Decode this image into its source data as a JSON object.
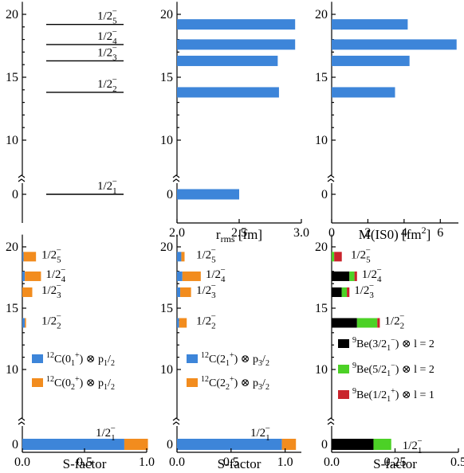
{
  "colors": {
    "blue": "#3d85d9",
    "orange": "#f28c1e",
    "black": "#000000",
    "green": "#4cd126",
    "red": "#c9242c"
  },
  "chart_data": [
    {
      "id": "levels",
      "type": "level-scheme",
      "ylim": [
        0,
        21
      ],
      "yticks": [
        "0",
        "10",
        "15",
        "20"
      ],
      "axis_break": true,
      "levels": [
        {
          "label": "1/2₁⁻",
          "E": 0
        },
        {
          "label": "1/2₂⁻",
          "E": 13.8
        },
        {
          "label": "1/2₃⁻",
          "E": 16.3
        },
        {
          "label": "1/2₄⁻",
          "E": 17.6
        },
        {
          "label": "1/2₅⁻",
          "E": 19.2
        }
      ]
    },
    {
      "id": "rrms",
      "type": "bar",
      "orientation": "horizontal",
      "xlabel": "r",
      "xlabel_sub": "rms",
      "xlabel_unit": "[fm]",
      "xlim": [
        2.0,
        3.0
      ],
      "xticks": [
        "2.0",
        "2.5",
        "3.0"
      ],
      "yticks": [
        "0",
        "10",
        "15",
        "20"
      ],
      "axis_break": true,
      "energies": [
        0,
        13.8,
        16.3,
        17.6,
        19.2
      ],
      "values": [
        2.5,
        2.82,
        2.81,
        2.95,
        2.95
      ]
    },
    {
      "id": "mis0",
      "type": "bar",
      "orientation": "horizontal",
      "xlabel": "M(IS0) [fm",
      "xlabel_sup": "2",
      "xlabel_end": "]",
      "xlim": [
        0,
        7
      ],
      "xticks": [
        "0",
        "2",
        "4",
        "6"
      ],
      "yticks": [
        "0",
        "10",
        "15",
        "20"
      ],
      "axis_break": true,
      "energies": [
        13.8,
        16.3,
        17.6,
        19.2
      ],
      "values": [
        3.5,
        4.3,
        6.9,
        4.2
      ]
    },
    {
      "id": "sf1",
      "type": "stacked-bar",
      "orientation": "horizontal",
      "xlabel": "S-factor",
      "xlim": [
        0,
        1.0
      ],
      "xticks": [
        "0.0",
        "0.5",
        "1.0"
      ],
      "yticks": [
        "0",
        "10",
        "15",
        "20"
      ],
      "axis_break": true,
      "levels": [
        "1/2₁⁻",
        "1/2₂⁻",
        "1/2₃⁻",
        "1/2₄⁻",
        "1/2₅⁻"
      ],
      "energies": [
        0,
        13.8,
        16.3,
        17.6,
        19.2
      ],
      "series": [
        {
          "name": "¹²C(0₁⁺) ⊗ p₁/₂",
          "color": "#3d85d9",
          "values": [
            0.82,
            0.02,
            0.0,
            0.02,
            0.01
          ]
        },
        {
          "name": "¹²C(0₂⁺) ⊗ p₁/₂",
          "color": "#f28c1e",
          "values": [
            0.19,
            0.01,
            0.08,
            0.13,
            0.1
          ]
        }
      ]
    },
    {
      "id": "sf2",
      "type": "stacked-bar",
      "orientation": "horizontal",
      "xlabel": "S-factor",
      "xlim": [
        0,
        1.15
      ],
      "xticks": [
        "0.0",
        "0.5",
        "1.0"
      ],
      "yticks": [
        "0",
        "10",
        "15",
        "20"
      ],
      "axis_break": true,
      "levels": [
        "1/2₁⁻",
        "1/2₂⁻",
        "1/2₃⁻",
        "1/2₄⁻",
        "1/2₅⁻"
      ],
      "energies": [
        0,
        13.8,
        16.3,
        17.6,
        19.2
      ],
      "series": [
        {
          "name": "¹²C(2₁⁺) ⊗ p₃/₂",
          "color": "#3d85d9",
          "values": [
            0.97,
            0.02,
            0.03,
            0.05,
            0.04
          ]
        },
        {
          "name": "¹²C(2₂⁺) ⊗ p₃/₂",
          "color": "#f28c1e",
          "values": [
            0.13,
            0.07,
            0.1,
            0.17,
            0.03
          ]
        }
      ]
    },
    {
      "id": "sf3",
      "type": "stacked-bar",
      "orientation": "horizontal",
      "xlabel": "S-factor",
      "xlim": [
        0,
        0.5
      ],
      "xticks": [
        "0.0",
        "0.25",
        "0.5"
      ],
      "yticks": [
        "0",
        "10",
        "15",
        "20"
      ],
      "axis_break": true,
      "levels": [
        "1/2₁⁻",
        "1/2₂⁻",
        "1/2₃⁻",
        "1/2₄⁻",
        "1/2₅⁻"
      ],
      "energies": [
        0,
        13.8,
        16.3,
        17.6,
        19.2
      ],
      "series": [
        {
          "name": "⁹Be(3/2₁⁻) ⊗ l = 2",
          "color": "#000000",
          "values": [
            0.165,
            0.1,
            0.04,
            0.07,
            0.0
          ]
        },
        {
          "name": "⁹Be(5/2₁⁻) ⊗ l = 2",
          "color": "#4cd126",
          "values": [
            0.07,
            0.08,
            0.02,
            0.02,
            0.01
          ]
        },
        {
          "name": "⁹Be(1/2₁⁺) ⊗ l = 1",
          "color": "#c9242c",
          "values": [
            0.0,
            0.01,
            0.01,
            0.01,
            0.03
          ]
        }
      ]
    }
  ]
}
